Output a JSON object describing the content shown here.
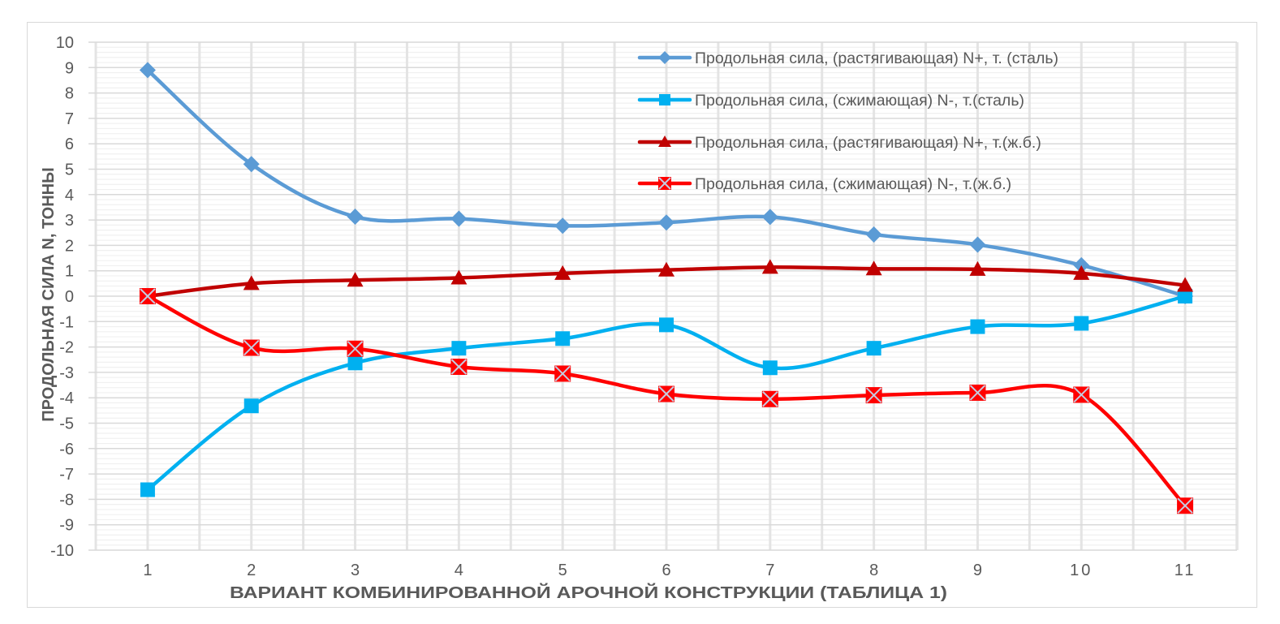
{
  "chart_data": {
    "type": "line",
    "title": "",
    "xlabel": "ВАРИАНТ КОМБИНИРОВАННОЙ АРОЧНОЙ КОНСТРУКЦИИ (ТАБЛИЦА 1)",
    "ylabel": "ПРОДОЛЬНАЯ СИЛА  N, ТОННЫ",
    "categories": [
      "1",
      "2",
      "3",
      "4",
      "5",
      "6",
      "7",
      "8",
      "9",
      "10",
      "11"
    ],
    "ylim": [
      -10,
      10
    ],
    "yticks": [
      10,
      9,
      8,
      7,
      6,
      5,
      4,
      3,
      2,
      1,
      0,
      -1,
      -2,
      -3,
      -4,
      -5,
      -6,
      -7,
      -8,
      -9,
      -10
    ],
    "grid": true,
    "smooth": true,
    "legend_position": "top-right inside",
    "series": [
      {
        "name": "Продольная сила, (растягивающая)  N+, т. (сталь)",
        "color": "#5b9bd5",
        "marker": "diamond",
        "values": [
          8.9,
          5.2,
          3.13,
          3.05,
          2.77,
          2.9,
          3.12,
          2.43,
          2.03,
          1.22,
          0.0
        ]
      },
      {
        "name": "Продольная сила, (сжимающая)  N-, т.(сталь)",
        "color": "#00b0f0",
        "marker": "square",
        "values": [
          -7.62,
          -4.32,
          -2.63,
          -2.05,
          -1.67,
          -1.13,
          -2.82,
          -2.05,
          -1.2,
          -1.07,
          0.0
        ]
      },
      {
        "name": "Продольная сила, (растягивающая)  N+, т.(ж.б.)",
        "color": "#c00000",
        "marker": "triangle",
        "values": [
          0.0,
          0.5,
          0.63,
          0.72,
          0.9,
          1.03,
          1.14,
          1.08,
          1.06,
          0.9,
          0.43
        ]
      },
      {
        "name": "Продольная сила, (сжимающая)  N-, т.(ж.б.)",
        "color": "#ff0000",
        "marker": "x-square",
        "values": [
          0.0,
          -2.03,
          -2.07,
          -2.78,
          -3.05,
          -3.85,
          -4.05,
          -3.9,
          -3.8,
          -3.88,
          -8.25
        ]
      }
    ]
  },
  "colors": {
    "text": "#595959",
    "major_grid": "#d9d9d9",
    "minor_grid": "#f0f0f0",
    "vertical_grid": "#e4e4e4",
    "frame": "#d9d9d9",
    "x_marker_cross": "#c5cbe0"
  }
}
